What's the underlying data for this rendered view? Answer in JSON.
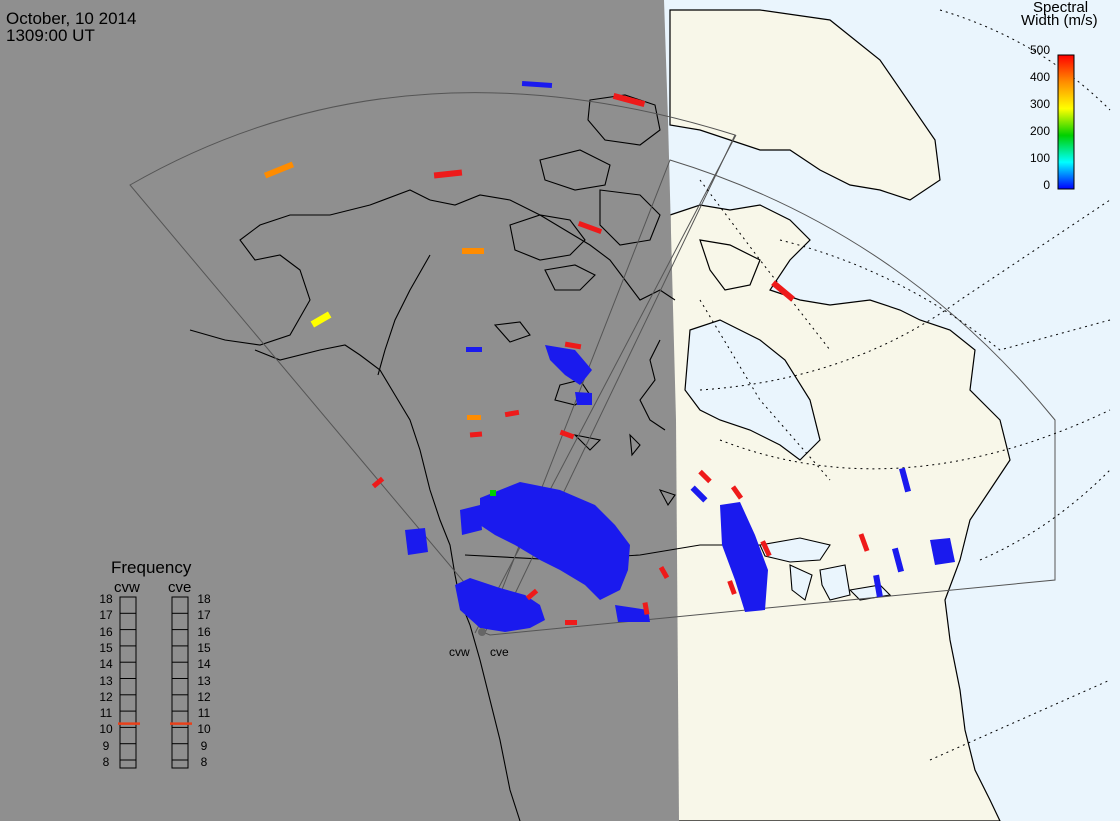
{
  "header": {
    "date": "October, 10 2014",
    "time": "1309:00 UT"
  },
  "colorbar": {
    "title_line1": "Spectral",
    "title_line2": "Width (m/s)",
    "ticks": [
      "500",
      "400",
      "300",
      "200",
      "100",
      "0"
    ],
    "colors": [
      "#ff0000",
      "#ff8c00",
      "#ffff00",
      "#00d000",
      "#00ffff",
      "#0000ff"
    ]
  },
  "frequency_panel": {
    "title": "Frequency",
    "radars": [
      {
        "name": "cvw",
        "value": 10.6
      },
      {
        "name": "cve",
        "value": 10.6
      }
    ],
    "scale": [
      "18",
      "17",
      "16",
      "15",
      "14",
      "13",
      "12",
      "11",
      "10",
      "9",
      "8"
    ]
  },
  "radar_sites": [
    "cvw",
    "cve"
  ],
  "map_colors": {
    "night": "#8f8f8f",
    "land_day": "#f8f7e9",
    "ocean_day": "#eaf5fd",
    "scatter_low": "#1a1aee",
    "scatter_high": "#ee1a1a"
  }
}
